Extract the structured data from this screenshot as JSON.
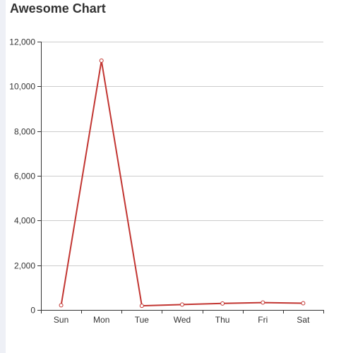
{
  "chart_data": {
    "type": "line",
    "title": "Awesome Chart",
    "categories": [
      "Sun",
      "Mon",
      "Tue",
      "Wed",
      "Thu",
      "Fri",
      "Sat"
    ],
    "series": [
      {
        "values": [
          210,
          11150,
          185,
          240,
          290,
          330,
          300
        ],
        "color": "#c23531"
      }
    ],
    "y_ticks": [
      "0",
      "2,000",
      "4,000",
      "6,000",
      "8,000",
      "10,000",
      "12,000"
    ],
    "ylim": [
      0,
      12000
    ],
    "y_tick_step": 2000,
    "grid": true,
    "legend": "none"
  }
}
